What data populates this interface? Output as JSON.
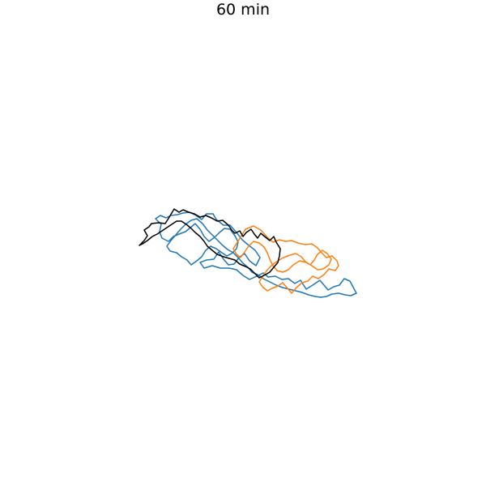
{
  "title": "60 min",
  "series_colors": {
    "blue": "#1f77b4",
    "orange": "#ff7f0e",
    "black": "#000000"
  }
}
